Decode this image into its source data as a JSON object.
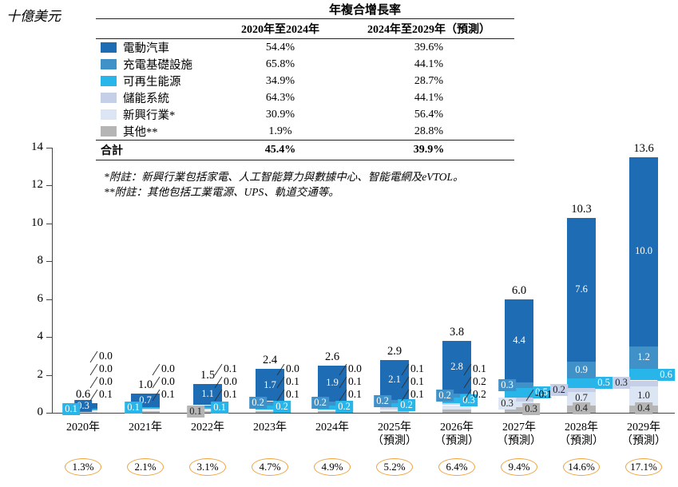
{
  "unit_label": "十億美元",
  "cagr_table": {
    "title": "年複合增長率",
    "col1": "2020年至2024年",
    "col2": "2024年至2029年（預測）",
    "rows": [
      {
        "label": "電動汽車",
        "color": "#1e6cb3",
        "v1": "54.4%",
        "v2": "39.6%"
      },
      {
        "label": "充電基礎設施",
        "color": "#4191c9",
        "v1": "65.8%",
        "v2": "44.1%"
      },
      {
        "label": "可再生能源",
        "color": "#27b5ea",
        "v1": "34.9%",
        "v2": "28.7%"
      },
      {
        "label": "儲能系統",
        "color": "#c5cfe8",
        "v1": "64.3%",
        "v2": "44.1%"
      },
      {
        "label": "新興行業*",
        "color": "#dce5f3",
        "v1": "30.9%",
        "v2": "56.4%"
      },
      {
        "label": "其他**",
        "color": "#b5b5b5",
        "v1": "1.9%",
        "v2": "28.8%"
      }
    ],
    "total": {
      "label": "合計",
      "v1": "45.4%",
      "v2": "39.9%"
    },
    "footnote1": "*附註：新興行業包括家電、人工智能算力與數據中心、智能電網及eVTOL。",
    "footnote2": "**附註：其他包括工業電源、UPS、軌道交通等。"
  },
  "chart_data": {
    "type": "bar",
    "stacked": true,
    "ylabel": "十億美元",
    "ylim": [
      0,
      14
    ],
    "yticks": [
      0,
      2,
      4,
      6,
      8,
      10,
      12,
      14
    ],
    "categories": [
      "2020年",
      "2021年",
      "2022年",
      "2023年",
      "2024年",
      "2025年（預測）",
      "2026年（預測）",
      "2027年（預測）",
      "2028年（預測）",
      "2029年（預測）"
    ],
    "series": [
      {
        "name": "電動汽車",
        "color": "#1e6cb3",
        "text_color": "#ffffff",
        "values": [
          0.3,
          0.7,
          1.1,
          1.7,
          1.9,
          2.1,
          2.8,
          4.4,
          7.6,
          10.0
        ]
      },
      {
        "name": "充電基礎設施",
        "color": "#4191c9",
        "text_color": "#ffffff",
        "values": [
          0.0,
          0.0,
          0.1,
          0.2,
          0.2,
          0.2,
          0.2,
          0.3,
          0.9,
          1.2
        ]
      },
      {
        "name": "可再生能源",
        "color": "#27b5ea",
        "text_color": "#ffffff",
        "values": [
          0.1,
          0.1,
          0.1,
          0.2,
          0.2,
          0.2,
          0.3,
          0.5,
          0.5,
          0.6
        ]
      },
      {
        "name": "儲能系統",
        "color": "#c5cfe8",
        "text_color": "#222222",
        "values": [
          0.0,
          0.0,
          0.0,
          0.0,
          0.0,
          0.1,
          0.1,
          0.2,
          0.2,
          0.3
        ]
      },
      {
        "name": "新興行業*",
        "color": "#dce5f3",
        "text_color": "#222222",
        "values": [
          0.1,
          0.1,
          0.1,
          0.1,
          0.1,
          0.1,
          0.2,
          0.3,
          0.7,
          1.0
        ]
      },
      {
        "name": "其他**",
        "color": "#b5b5b5",
        "text_color": "#222222",
        "values": [
          0.0,
          0.1,
          0.1,
          0.1,
          0.1,
          0.1,
          0.2,
          0.3,
          0.4,
          0.4
        ]
      }
    ],
    "totals": [
      "0.6",
      "1.0",
      "1.5",
      "2.4",
      "2.6",
      "2.9",
      "3.8",
      "6.0",
      "10.3",
      "13.6"
    ],
    "segment_labels": [
      [
        {
          "t": "0.3",
          "s": 0,
          "p": "in"
        },
        {
          "t": "0.1",
          "s": 2,
          "p": "inl"
        }
      ],
      [
        {
          "t": "0.7",
          "s": 0,
          "p": "in"
        },
        {
          "t": "0.1",
          "s": 2,
          "p": "inl"
        }
      ],
      [
        {
          "t": "1.1",
          "s": 0,
          "p": "in"
        },
        {
          "t": "0.1",
          "s": 2,
          "p": "inr"
        },
        {
          "t": "0.1",
          "s": 5,
          "p": "inl"
        }
      ],
      [
        {
          "t": "1.7",
          "s": 0,
          "p": "in"
        },
        {
          "t": "0.2",
          "s": 1,
          "p": "inl"
        },
        {
          "t": "0.2",
          "s": 2,
          "p": "inr"
        }
      ],
      [
        {
          "t": "1.9",
          "s": 0,
          "p": "in"
        },
        {
          "t": "0.2",
          "s": 1,
          "p": "inl"
        },
        {
          "t": "0.2",
          "s": 2,
          "p": "inr"
        }
      ],
      [
        {
          "t": "2.1",
          "s": 0,
          "p": "in"
        },
        {
          "t": "0.2",
          "s": 1,
          "p": "inl"
        },
        {
          "t": "0.2",
          "s": 2,
          "p": "inr"
        }
      ],
      [
        {
          "t": "2.8",
          "s": 0,
          "p": "in"
        },
        {
          "t": "0.2",
          "s": 1,
          "p": "inl"
        },
        {
          "t": "0.3",
          "s": 2,
          "p": "inr"
        }
      ],
      [
        {
          "t": "4.4",
          "s": 0,
          "p": "in"
        },
        {
          "t": "0.3",
          "s": 1,
          "p": "inl"
        },
        {
          "t": "0.5",
          "s": 2,
          "p": "right"
        },
        {
          "t": "0.3",
          "s": 4,
          "p": "inl"
        },
        {
          "t": "0.3",
          "s": 5,
          "p": "inr"
        }
      ],
      [
        {
          "t": "7.6",
          "s": 0,
          "p": "in"
        },
        {
          "t": "0.9",
          "s": 1,
          "p": "in"
        },
        {
          "t": "0.5",
          "s": 2,
          "p": "right"
        },
        {
          "t": "0.2",
          "s": 3,
          "p": "left"
        },
        {
          "t": "0.7",
          "s": 4,
          "p": "in"
        },
        {
          "t": "0.4",
          "s": 5,
          "p": "in"
        }
      ],
      [
        {
          "t": "10.0",
          "s": 0,
          "p": "in"
        },
        {
          "t": "1.2",
          "s": 1,
          "p": "in"
        },
        {
          "t": "0.6",
          "s": 2,
          "p": "right"
        },
        {
          "t": "0.3",
          "s": 3,
          "p": "left"
        },
        {
          "t": "1.0",
          "s": 4,
          "p": "in"
        },
        {
          "t": "0.4",
          "s": 5,
          "p": "in"
        }
      ]
    ],
    "callouts": [
      [
        "0.0",
        "0.0",
        "0.0",
        "0.1"
      ],
      [
        "0.0",
        "0.0",
        "0.1"
      ],
      [
        "0.1",
        "0.0",
        "0.1"
      ],
      [
        "0.0",
        "0.1",
        "0.1"
      ],
      [
        "0.0",
        "0.1",
        "0.1"
      ],
      [
        "0.1",
        "0.1",
        "0.1"
      ],
      [
        "0.1",
        "0.2",
        "0.2"
      ],
      [
        "-0.1"
      ],
      [],
      []
    ],
    "shares": [
      "1.3%",
      "2.1%",
      "3.1%",
      "4.7%",
      "4.9%",
      "5.2%",
      "6.4%",
      "9.4%",
      "14.6%",
      "17.1%"
    ],
    "share_oval_color": "#efa23c"
  }
}
